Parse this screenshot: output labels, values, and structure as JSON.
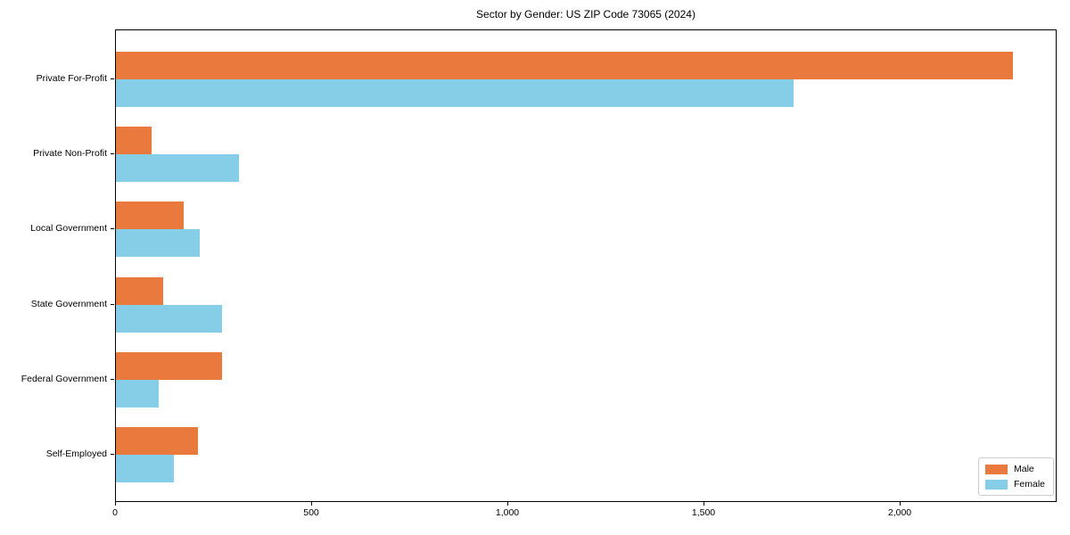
{
  "title": "Sector by Gender: US ZIP Code 73065 (2024)",
  "colors": {
    "male": "#E9793C",
    "female": "#86CEE8",
    "axis": "#000000",
    "legend_border": "#cccccc",
    "background": "#ffffff"
  },
  "legend": {
    "position": "lower right",
    "entries": [
      {
        "label": "Male",
        "color": "#E9793C"
      },
      {
        "label": "Female",
        "color": "#86CEE8"
      }
    ]
  },
  "chart_data": {
    "type": "bar",
    "orientation": "horizontal",
    "title": "Sector by Gender: US ZIP Code 73065 (2024)",
    "xlabel": "",
    "ylabel": "",
    "grid": false,
    "legend_position": "lower right",
    "categories": [
      "Private For-Profit",
      "Private Non-Profit",
      "Local Government",
      "State Government",
      "Federal Government",
      "Self-Employed"
    ],
    "series": [
      {
        "name": "Male",
        "color": "#E9793C",
        "values": [
          2290,
          90,
          173,
          120,
          270,
          210
        ]
      },
      {
        "name": "Female",
        "color": "#86CEE8",
        "values": [
          1730,
          315,
          215,
          270,
          110,
          148
        ]
      }
    ],
    "xlim": [
      0,
      2400
    ],
    "x_ticks": [
      0,
      500,
      1000,
      1500,
      2000
    ],
    "x_tick_labels": [
      "0",
      "500",
      "1,000",
      "1,500",
      "2,000"
    ]
  }
}
